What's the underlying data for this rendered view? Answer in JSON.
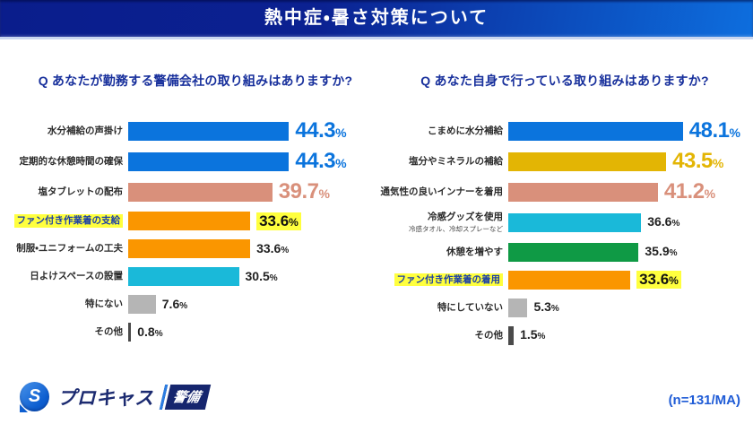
{
  "header": {
    "title": "熱中症・暑さ対策について"
  },
  "chart_data": [
    {
      "type": "bar",
      "orientation": "horizontal",
      "title": "Q あなたが勤務する警備会社の取り組みはありますか?",
      "unit": "%",
      "xlim": [
        0,
        50
      ],
      "legend": "none",
      "grid": false,
      "categories": [
        "水分補給の声掛け",
        "定期的な休憩時間の確保",
        "塩タブレットの配布",
        "ファン付き作業着の支給",
        "制服・ユニフォームの工夫",
        "日よけスペースの設置",
        "特にない",
        "その他"
      ],
      "values": [
        44.3,
        44.3,
        39.7,
        33.6,
        33.6,
        30.5,
        7.6,
        0.8
      ],
      "bars": [
        {
          "label": "水分補給の声掛け",
          "value": 44.3,
          "color": "#0b74dd",
          "value_style": "large",
          "highlight": false
        },
        {
          "label": "定期的な休憩時間の確保",
          "value": 44.3,
          "color": "#0b74dd",
          "value_style": "large",
          "highlight": false
        },
        {
          "label": "塩タブレットの配布",
          "value": 39.7,
          "color": "#d9907b",
          "value_style": "large",
          "highlight": false
        },
        {
          "label": "ファン付き作業着の支給",
          "value": 33.6,
          "color": "#fa9600",
          "value_style": "highlight",
          "highlight": true
        },
        {
          "label": "制服・ユニフォームの工夫",
          "value": 33.6,
          "color": "#fa9600",
          "value_style": "normal",
          "highlight": false
        },
        {
          "label": "日よけスペースの設置",
          "value": 30.5,
          "color": "#1ab9d9",
          "value_style": "normal",
          "highlight": false
        },
        {
          "label": "特にない",
          "value": 7.6,
          "color": "#b5b5b5",
          "value_style": "normal",
          "highlight": false
        },
        {
          "label": "その他",
          "value": 0.8,
          "color": "#4a4a4a",
          "value_style": "normal",
          "highlight": false
        }
      ]
    },
    {
      "type": "bar",
      "orientation": "horizontal",
      "title": "Q あなた自身で行っている取り組みはありますか?",
      "unit": "%",
      "xlim": [
        0,
        50
      ],
      "legend": "none",
      "grid": false,
      "categories": [
        "こまめに水分補給",
        "塩分やミネラルの補給",
        "通気性の良いインナーを着用",
        "冷感グッズを使用",
        "休憩を増やす",
        "ファン付き作業着の着用",
        "特にしていない",
        "その他"
      ],
      "values": [
        48.1,
        43.5,
        41.2,
        36.6,
        35.9,
        33.6,
        5.3,
        1.5
      ],
      "bars": [
        {
          "label": "こまめに水分補給",
          "value": 48.1,
          "color": "#0b74dd",
          "value_style": "large",
          "highlight": false
        },
        {
          "label": "塩分やミネラルの補給",
          "value": 43.5,
          "color": "#e3b504",
          "value_style": "large",
          "highlight": false
        },
        {
          "label": "通気性の良いインナーを着用",
          "value": 41.2,
          "color": "#d9907b",
          "value_style": "large",
          "highlight": false
        },
        {
          "label": "冷感グッズを使用",
          "sublabel": "冷感タオル、冷却スプレーなど",
          "value": 36.6,
          "color": "#1ab9d9",
          "value_style": "normal",
          "highlight": false
        },
        {
          "label": "休憩を増やす",
          "value": 35.9,
          "color": "#0f9a45",
          "value_style": "normal",
          "highlight": false
        },
        {
          "label": "ファン付き作業着の着用",
          "value": 33.6,
          "color": "#fa9600",
          "value_style": "highlight",
          "highlight": true
        },
        {
          "label": "特にしていない",
          "value": 5.3,
          "color": "#b5b5b5",
          "value_style": "normal",
          "highlight": false
        },
        {
          "label": "その他",
          "value": 1.5,
          "color": "#4a4a4a",
          "value_style": "normal",
          "highlight": false
        }
      ]
    }
  ],
  "footer": {
    "logo": {
      "icon": "procas-speech-bubble-s-icon",
      "icon_letter": "S",
      "brand": "プロキャス",
      "badge": "警備"
    },
    "sample_label": "(n=131/MA)"
  },
  "colors": {
    "header_gradient_start": "#0a1d8c",
    "header_gradient_end": "#0d6ede",
    "question_text": "#18309c",
    "highlight_yellow": "#ffff3e",
    "sample_label_text": "#1e5bd6",
    "bar_blue": "#0b74dd",
    "bar_gold": "#e3b504",
    "bar_salmon": "#d9907b",
    "bar_cyan": "#1ab9d9",
    "bar_green": "#0f9a45",
    "bar_orange": "#fa9600",
    "bar_gray": "#b5b5b5",
    "bar_darkgray": "#4a4a4a"
  }
}
